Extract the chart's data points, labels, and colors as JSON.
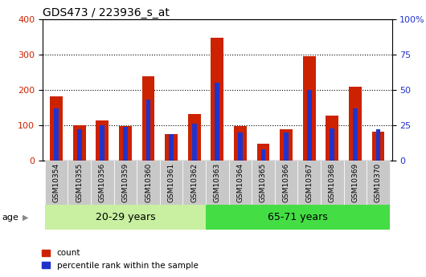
{
  "title": "GDS473 / 223936_s_at",
  "samples": [
    "GSM10354",
    "GSM10355",
    "GSM10356",
    "GSM10359",
    "GSM10360",
    "GSM10361",
    "GSM10362",
    "GSM10363",
    "GSM10364",
    "GSM10365",
    "GSM10366",
    "GSM10367",
    "GSM10368",
    "GSM10369",
    "GSM10370"
  ],
  "count": [
    182,
    100,
    115,
    97,
    238,
    75,
    133,
    348,
    97,
    48,
    90,
    295,
    128,
    210,
    82
  ],
  "percentile": [
    37,
    22,
    25,
    24,
    43,
    19,
    26,
    55,
    20,
    8,
    20,
    50,
    23,
    37,
    22
  ],
  "group1_label": "20-29 years",
  "group2_label": "65-71 years",
  "group1_indices": [
    0,
    1,
    2,
    3,
    4,
    5,
    6
  ],
  "group2_indices": [
    7,
    8,
    9,
    10,
    11,
    12,
    13,
    14
  ],
  "legend_count": "count",
  "legend_pct": "percentile rank within the sample",
  "age_label": "age",
  "ylim_left": [
    0,
    400
  ],
  "ylim_right": [
    0,
    100
  ],
  "yticks_left": [
    0,
    100,
    200,
    300,
    400
  ],
  "yticks_right": [
    0,
    25,
    50,
    75,
    100
  ],
  "bar_color_count": "#cc2200",
  "bar_color_pct": "#2233cc",
  "group1_bg": "#c8f0a0",
  "group2_bg": "#44dd44",
  "tick_bg": "#c8c8c8",
  "bar_width": 0.55,
  "pct_bar_width": 0.2
}
